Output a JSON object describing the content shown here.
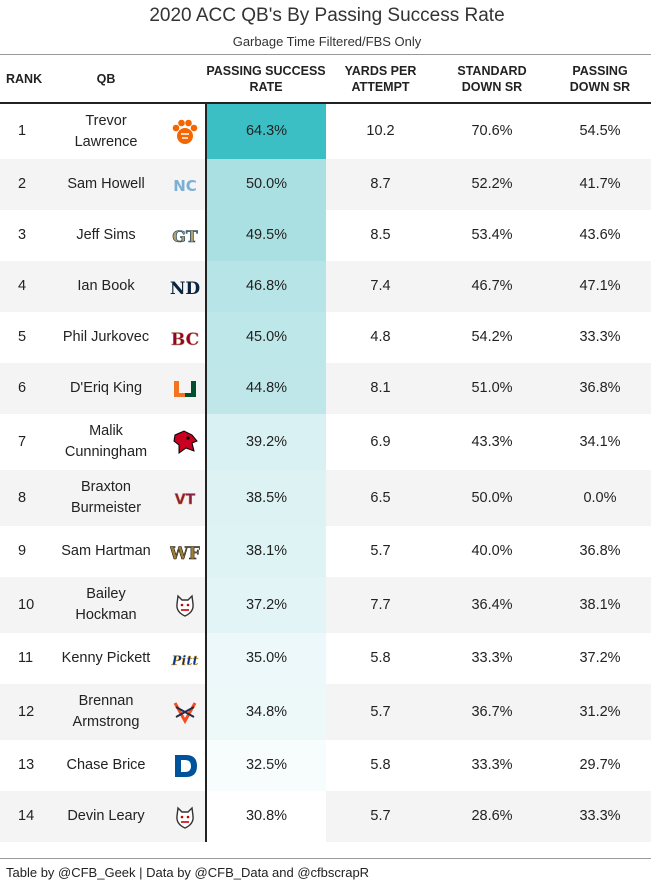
{
  "title": "2020 ACC QB's By Passing Success Rate",
  "subtitle": "Garbage Time Filtered/FBS Only",
  "headers": {
    "rank": "RANK",
    "qb": "QB",
    "psr_line1": "PASSING SUCCESS",
    "psr_line2": "RATE",
    "ypa_line1": "YARDS PER",
    "ypa_line2": "ATTEMPT",
    "std_line1": "STANDARD",
    "std_line2": "DOWN SR",
    "pass_line1": "PASSING",
    "pass_line2": "DOWN SR"
  },
  "heat_colors": {
    "high": "#3bbfc4",
    "low": "#ffffff"
  },
  "rows": [
    {
      "rank": "1",
      "qb_line1": "Trevor",
      "qb_line2": "Lawrence",
      "team": "clemson-logo",
      "psr": "64.3%",
      "psr_value": 64.3,
      "ypa": "10.2",
      "std": "70.6%",
      "pass": "54.5%"
    },
    {
      "rank": "2",
      "qb_line1": "Sam Howell",
      "qb_line2": "",
      "team": "unc-logo",
      "psr": "50.0%",
      "psr_value": 50.0,
      "ypa": "8.7",
      "std": "52.2%",
      "pass": "41.7%"
    },
    {
      "rank": "3",
      "qb_line1": "Jeff Sims",
      "qb_line2": "",
      "team": "georgia-tech-logo",
      "psr": "49.5%",
      "psr_value": 49.5,
      "ypa": "8.5",
      "std": "53.4%",
      "pass": "43.6%"
    },
    {
      "rank": "4",
      "qb_line1": "Ian Book",
      "qb_line2": "",
      "team": "notre-dame-logo",
      "psr": "46.8%",
      "psr_value": 46.8,
      "ypa": "7.4",
      "std": "46.7%",
      "pass": "47.1%"
    },
    {
      "rank": "5",
      "qb_line1": "Phil Jurkovec",
      "qb_line2": "",
      "team": "boston-college-logo",
      "psr": "45.0%",
      "psr_value": 45.0,
      "ypa": "4.8",
      "std": "54.2%",
      "pass": "33.3%"
    },
    {
      "rank": "6",
      "qb_line1": "D'Eriq King",
      "qb_line2": "",
      "team": "miami-logo",
      "psr": "44.8%",
      "psr_value": 44.8,
      "ypa": "8.1",
      "std": "51.0%",
      "pass": "36.8%"
    },
    {
      "rank": "7",
      "qb_line1": "Malik",
      "qb_line2": "Cunningham",
      "team": "louisville-logo",
      "psr": "39.2%",
      "psr_value": 39.2,
      "ypa": "6.9",
      "std": "43.3%",
      "pass": "34.1%"
    },
    {
      "rank": "8",
      "qb_line1": "Braxton",
      "qb_line2": "Burmeister",
      "team": "virginia-tech-logo",
      "psr": "38.5%",
      "psr_value": 38.5,
      "ypa": "6.5",
      "std": "50.0%",
      "pass": "0.0%"
    },
    {
      "rank": "9",
      "qb_line1": "Sam Hartman",
      "qb_line2": "",
      "team": "wake-forest-logo",
      "psr": "38.1%",
      "psr_value": 38.1,
      "ypa": "5.7",
      "std": "40.0%",
      "pass": "36.8%"
    },
    {
      "rank": "10",
      "qb_line1": "Bailey",
      "qb_line2": "Hockman",
      "team": "nc-state-logo",
      "psr": "37.2%",
      "psr_value": 37.2,
      "ypa": "7.7",
      "std": "36.4%",
      "pass": "38.1%"
    },
    {
      "rank": "11",
      "qb_line1": "Kenny Pickett",
      "qb_line2": "",
      "team": "pitt-logo",
      "psr": "35.0%",
      "psr_value": 35.0,
      "ypa": "5.8",
      "std": "33.3%",
      "pass": "37.2%"
    },
    {
      "rank": "12",
      "qb_line1": "Brennan",
      "qb_line2": "Armstrong",
      "team": "virginia-logo",
      "psr": "34.8%",
      "psr_value": 34.8,
      "ypa": "5.7",
      "std": "36.7%",
      "pass": "31.2%"
    },
    {
      "rank": "13",
      "qb_line1": "Chase Brice",
      "qb_line2": "",
      "team": "duke-logo",
      "psr": "32.5%",
      "psr_value": 32.5,
      "ypa": "5.8",
      "std": "33.3%",
      "pass": "29.7%"
    },
    {
      "rank": "14",
      "qb_line1": "Devin Leary",
      "qb_line2": "",
      "team": "nc-state-logo",
      "psr": "30.8%",
      "psr_value": 30.8,
      "ypa": "5.7",
      "std": "28.6%",
      "pass": "33.3%"
    }
  ],
  "footer": "Table by @CFB_Geek | Data by @CFB_Data and @cfbscrapR"
}
